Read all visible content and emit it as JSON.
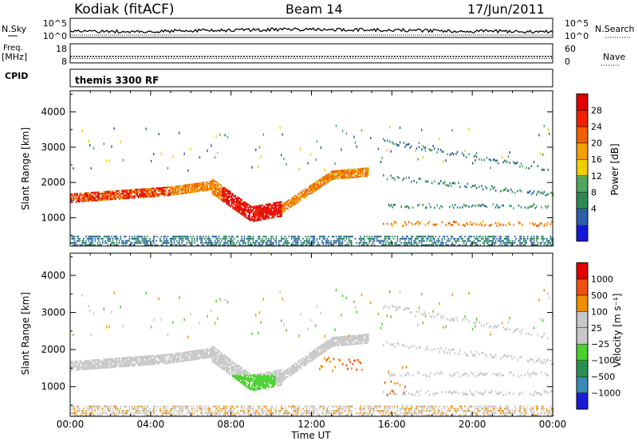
{
  "header": {
    "radar": "Kodiak (fitACF)",
    "beam": "Beam 14",
    "date": "17/Jun/2011"
  },
  "side_labels": {
    "nsky": "N.Sky",
    "freq": "Freq.",
    "freq_unit": "[MHz]",
    "cpid": "CPID",
    "nsearch": "N.Search",
    "nave": "Nave"
  },
  "cpid_text": "themis 3300 RF",
  "colors": {
    "power": [
      "#1515d8",
      "#2b5fa8",
      "#2e8a52",
      "#4fa660",
      "#f0d000",
      "#f0a000",
      "#f06000",
      "#f02000",
      "#e00000"
    ],
    "velocity": [
      "#1a1ad8",
      "#3a8ab8",
      "#2a9050",
      "#4ad030",
      "#c8c8c8",
      "#c8c8c8",
      "#f09000",
      "#f05010",
      "#e00000"
    ]
  },
  "chart_data": [
    {
      "type": "line",
      "panel": "noise",
      "left_ticks": [
        "10^5",
        "10^0"
      ],
      "right_ticks": [
        "10^5",
        "10^0"
      ]
    },
    {
      "type": "scatter",
      "panel": "frequency-nave",
      "left_ticks": [
        "18",
        "8"
      ],
      "right_ticks": [
        "60",
        "0"
      ]
    },
    {
      "type": "heatmap",
      "panel": "power",
      "ylabel": "Slant Range [km]",
      "yticks": [
        1000,
        2000,
        3000,
        4000
      ],
      "ylim": [
        200,
        4600
      ],
      "colorbar_label": "Power [dB]",
      "colorbar_ticks": [
        "28",
        "24",
        "20",
        "16",
        "12",
        "8",
        "4"
      ]
    },
    {
      "type": "heatmap",
      "panel": "velocity",
      "ylabel": "Slant Range [km]",
      "yticks": [
        1000,
        2000,
        3000,
        4000
      ],
      "ylim": [
        200,
        4600
      ],
      "colorbar_label": "Velocity [m s⁻¹]",
      "colorbar_ticks": [
        "1000",
        "500",
        "100",
        "25",
        "−25",
        "−100",
        "−500",
        "−1000"
      ]
    }
  ],
  "x_axis": {
    "label": "Time UT",
    "ticks": [
      "00:00",
      "04:00",
      "08:00",
      "12:00",
      "16:00",
      "20:00",
      "00:00"
    ]
  }
}
